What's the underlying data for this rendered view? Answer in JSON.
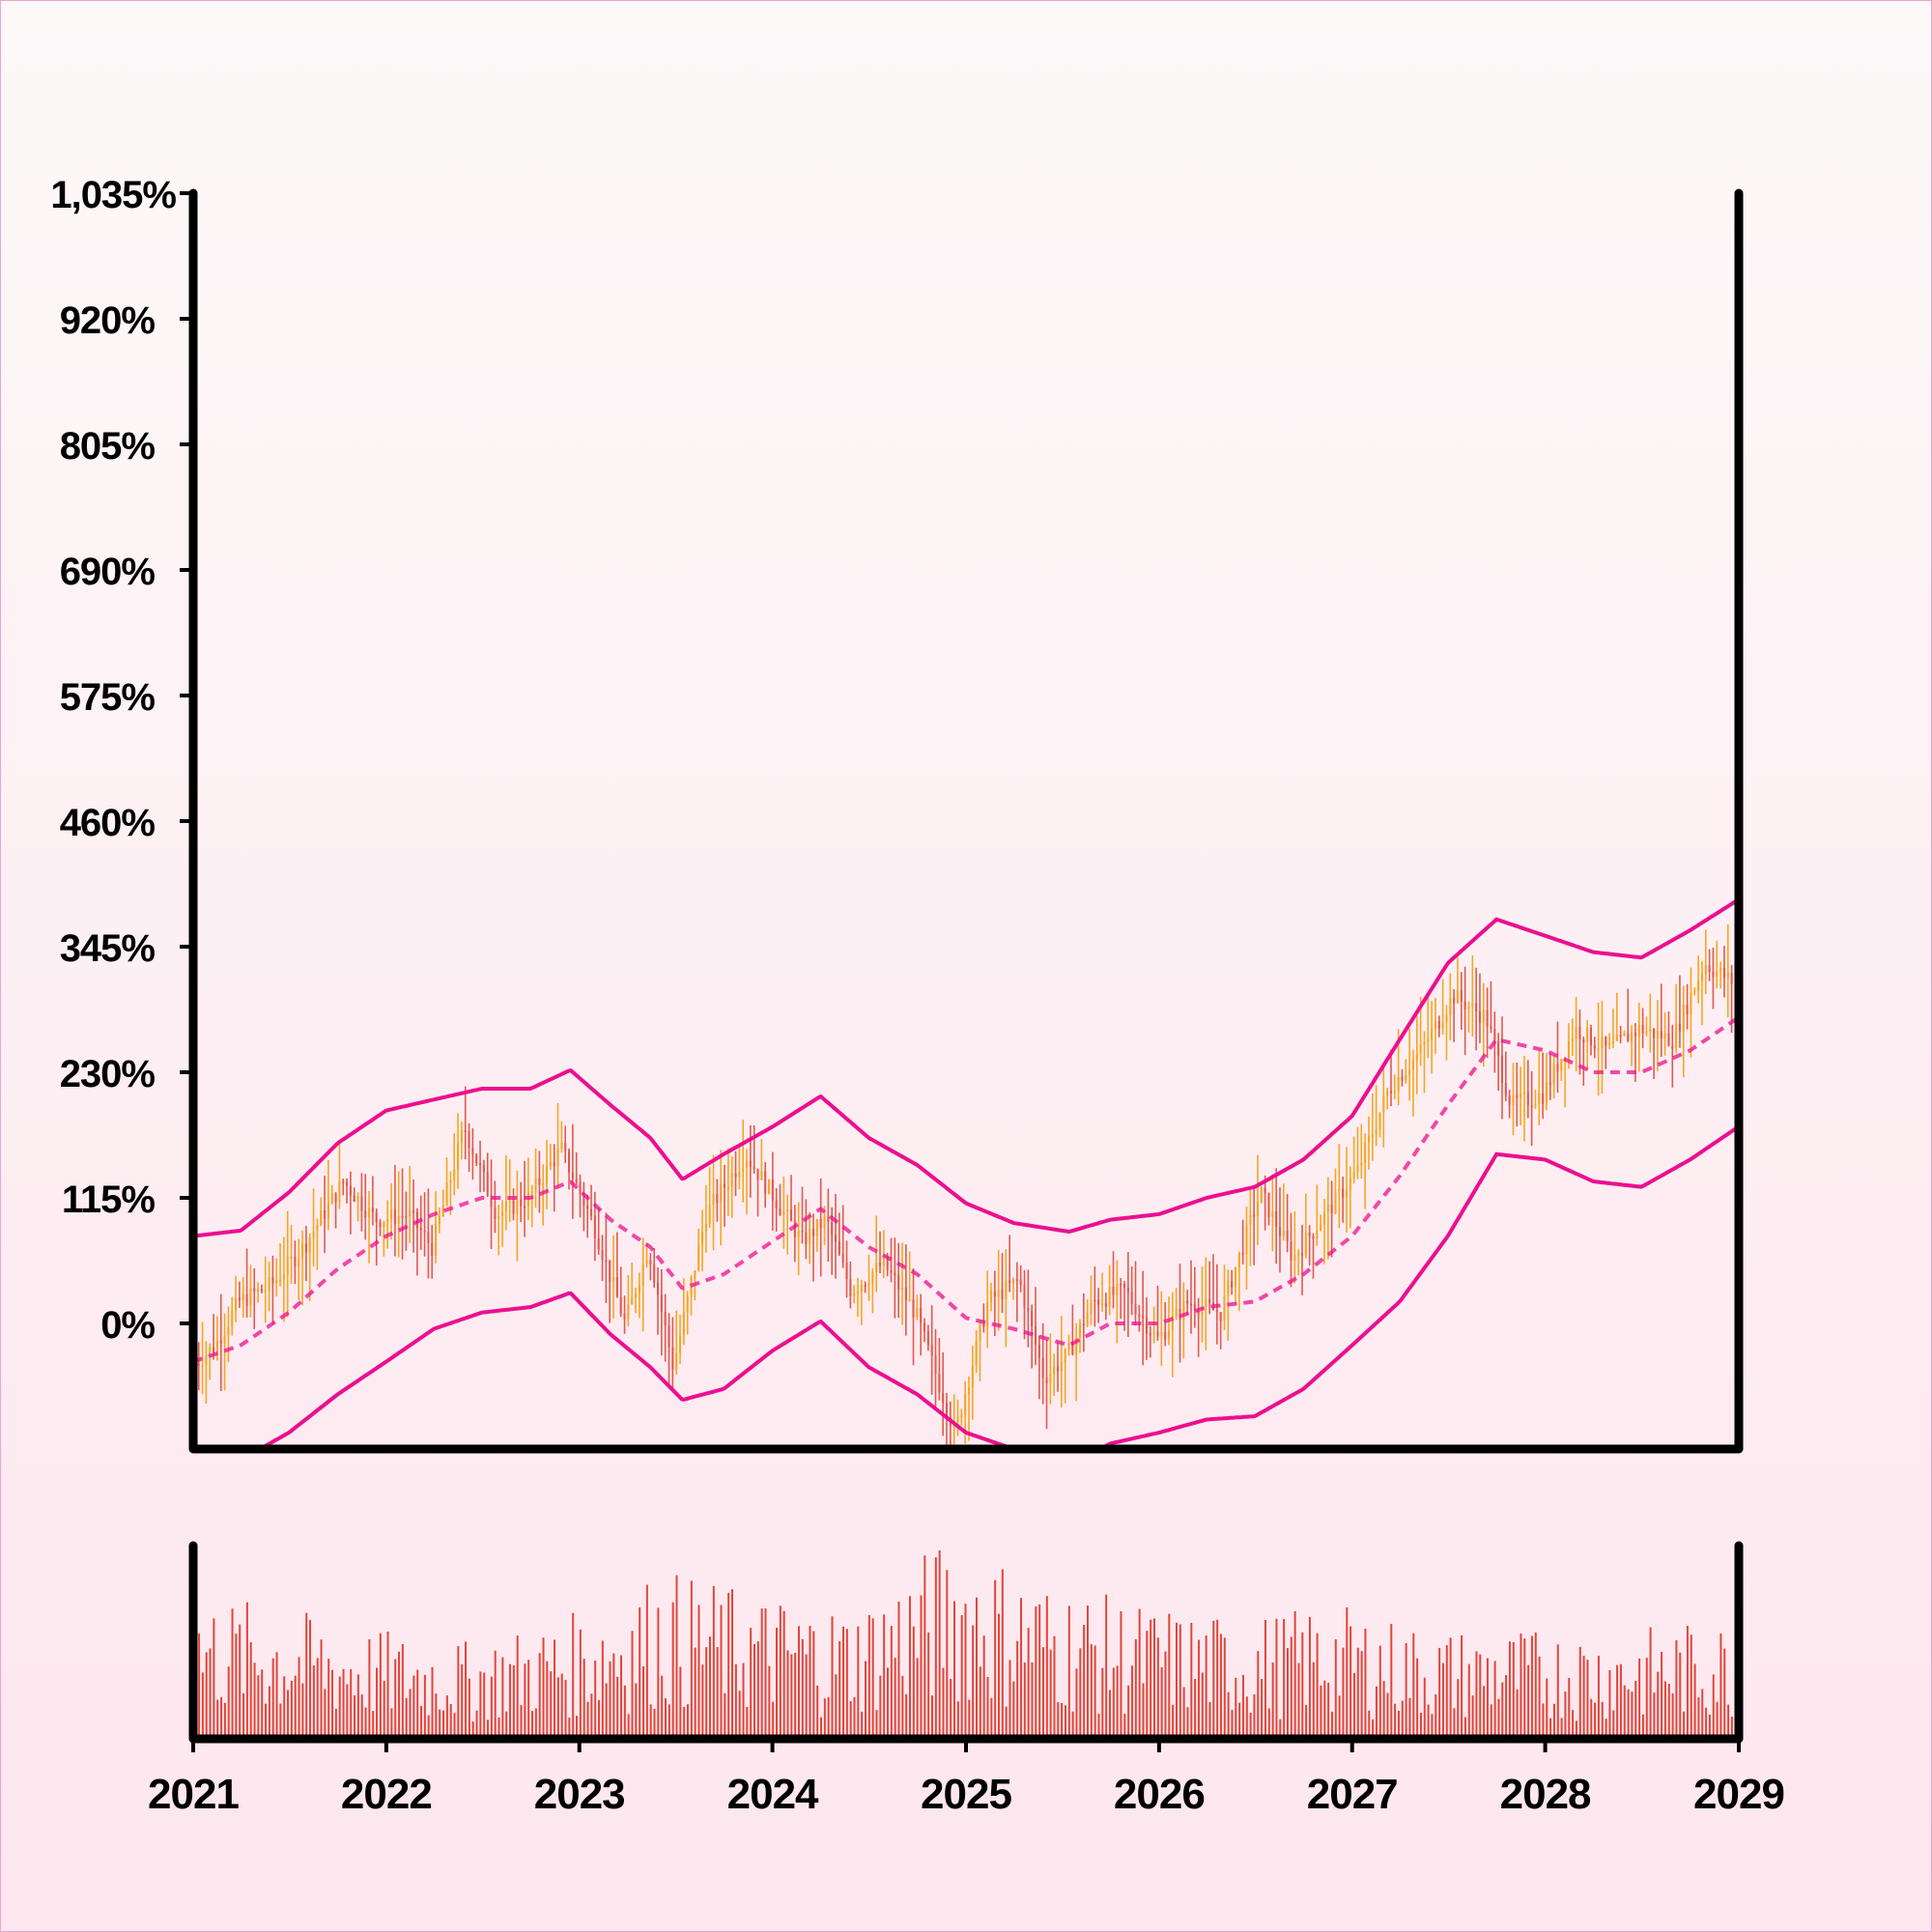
{
  "chart_data": [
    {
      "type": "candlestick",
      "title": "",
      "xlabel": "",
      "ylabel": "",
      "ylim": [
        -115,
        1035
      ],
      "yticks": [
        "0%",
        "115%",
        "230%",
        "345%",
        "460%",
        "575%",
        "690%",
        "805%",
        "920%",
        "1,035%"
      ],
      "ytick_values": [
        0,
        115,
        230,
        345,
        460,
        575,
        690,
        805,
        920,
        1035
      ],
      "x_start": "2021-01-01",
      "x_end": "2029-01-01",
      "candle_color_up": "#f5a623",
      "candle_color_down": "#e05a4f",
      "band_color": "#ec0f8f",
      "close_series": [
        {
          "date": "2021-01-01",
          "value": -40
        },
        {
          "date": "2021-02-15",
          "value": -20
        },
        {
          "date": "2021-04-01",
          "value": 20
        },
        {
          "date": "2021-06-01",
          "value": 35
        },
        {
          "date": "2021-08-01",
          "value": 70
        },
        {
          "date": "2021-10-15",
          "value": 130
        },
        {
          "date": "2021-12-15",
          "value": 95
        },
        {
          "date": "2022-02-15",
          "value": 100
        },
        {
          "date": "2022-04-01",
          "value": 70
        },
        {
          "date": "2022-06-01",
          "value": 180
        },
        {
          "date": "2022-08-01",
          "value": 100
        },
        {
          "date": "2022-10-01",
          "value": 115
        },
        {
          "date": "2022-12-01",
          "value": 160
        },
        {
          "date": "2023-02-01",
          "value": 90
        },
        {
          "date": "2023-04-01",
          "value": 0
        },
        {
          "date": "2023-05-15",
          "value": 70
        },
        {
          "date": "2023-07-01",
          "value": -40
        },
        {
          "date": "2023-09-01",
          "value": 100
        },
        {
          "date": "2023-11-15",
          "value": 155
        },
        {
          "date": "2024-01-15",
          "value": 110
        },
        {
          "date": "2024-03-01",
          "value": 75
        },
        {
          "date": "2024-04-15",
          "value": 95
        },
        {
          "date": "2024-06-01",
          "value": 30
        },
        {
          "date": "2024-08-01",
          "value": 55
        },
        {
          "date": "2024-10-01",
          "value": 10
        },
        {
          "date": "2024-12-15",
          "value": -100
        },
        {
          "date": "2025-02-15",
          "value": 20
        },
        {
          "date": "2025-04-15",
          "value": 40
        },
        {
          "date": "2025-06-01",
          "value": -50
        },
        {
          "date": "2025-07-15",
          "value": -30
        },
        {
          "date": "2025-09-01",
          "value": 20
        },
        {
          "date": "2025-11-01",
          "value": 30
        },
        {
          "date": "2026-01-01",
          "value": -15
        },
        {
          "date": "2026-03-01",
          "value": 20
        },
        {
          "date": "2026-05-01",
          "value": 10
        },
        {
          "date": "2026-07-15",
          "value": 120
        },
        {
          "date": "2026-09-15",
          "value": 60
        },
        {
          "date": "2026-11-15",
          "value": 100
        },
        {
          "date": "2027-01-15",
          "value": 140
        },
        {
          "date": "2027-03-15",
          "value": 215
        },
        {
          "date": "2027-05-15",
          "value": 250
        },
        {
          "date": "2027-07-15",
          "value": 300
        },
        {
          "date": "2027-09-15",
          "value": 280
        },
        {
          "date": "2027-11-01",
          "value": 200
        },
        {
          "date": "2028-01-01",
          "value": 210
        },
        {
          "date": "2028-03-01",
          "value": 270
        },
        {
          "date": "2028-05-01",
          "value": 250
        },
        {
          "date": "2028-07-01",
          "value": 270
        },
        {
          "date": "2028-09-01",
          "value": 260
        },
        {
          "date": "2028-11-01",
          "value": 330
        },
        {
          "date": "2028-12-31",
          "value": 310
        }
      ],
      "upper_band": [
        {
          "date": "2021-01-01",
          "value": 80
        },
        {
          "date": "2021-04-01",
          "value": 85
        },
        {
          "date": "2021-07-01",
          "value": 120
        },
        {
          "date": "2021-10-01",
          "value": 165
        },
        {
          "date": "2022-01-01",
          "value": 195
        },
        {
          "date": "2022-04-01",
          "value": 205
        },
        {
          "date": "2022-07-01",
          "value": 215
        },
        {
          "date": "2022-10-01",
          "value": 215
        },
        {
          "date": "2022-12-15",
          "value": 232
        },
        {
          "date": "2023-03-01",
          "value": 200
        },
        {
          "date": "2023-05-15",
          "value": 170
        },
        {
          "date": "2023-07-15",
          "value": 132
        },
        {
          "date": "2023-10-01",
          "value": 155
        },
        {
          "date": "2024-01-01",
          "value": 180
        },
        {
          "date": "2024-04-01",
          "value": 208
        },
        {
          "date": "2024-07-01",
          "value": 170
        },
        {
          "date": "2024-10-01",
          "value": 145
        },
        {
          "date": "2025-01-01",
          "value": 110
        },
        {
          "date": "2025-04-01",
          "value": 92
        },
        {
          "date": "2025-07-15",
          "value": 84
        },
        {
          "date": "2025-10-01",
          "value": 95
        },
        {
          "date": "2026-01-01",
          "value": 100
        },
        {
          "date": "2026-04-01",
          "value": 115
        },
        {
          "date": "2026-07-01",
          "value": 125
        },
        {
          "date": "2026-10-01",
          "value": 150
        },
        {
          "date": "2027-01-01",
          "value": 190
        },
        {
          "date": "2027-04-01",
          "value": 260
        },
        {
          "date": "2027-07-01",
          "value": 330
        },
        {
          "date": "2027-10-01",
          "value": 370
        },
        {
          "date": "2028-01-01",
          "value": 355
        },
        {
          "date": "2028-04-01",
          "value": 340
        },
        {
          "date": "2028-07-01",
          "value": 335
        },
        {
          "date": "2028-10-01",
          "value": 360
        },
        {
          "date": "2028-12-31",
          "value": 388
        }
      ],
      "middle_band": [
        {
          "date": "2021-01-01",
          "value": -35
        },
        {
          "date": "2021-04-01",
          "value": -20
        },
        {
          "date": "2021-07-01",
          "value": 10
        },
        {
          "date": "2021-10-01",
          "value": 50
        },
        {
          "date": "2022-01-01",
          "value": 80
        },
        {
          "date": "2022-04-01",
          "value": 100
        },
        {
          "date": "2022-07-01",
          "value": 115
        },
        {
          "date": "2022-10-01",
          "value": 115
        },
        {
          "date": "2022-12-15",
          "value": 130
        },
        {
          "date": "2023-03-01",
          "value": 95
        },
        {
          "date": "2023-05-15",
          "value": 70
        },
        {
          "date": "2023-07-15",
          "value": 32
        },
        {
          "date": "2023-10-01",
          "value": 45
        },
        {
          "date": "2024-01-01",
          "value": 75
        },
        {
          "date": "2024-04-01",
          "value": 105
        },
        {
          "date": "2024-07-01",
          "value": 70
        },
        {
          "date": "2024-10-01",
          "value": 45
        },
        {
          "date": "2025-01-01",
          "value": 5
        },
        {
          "date": "2025-04-01",
          "value": -5
        },
        {
          "date": "2025-07-15",
          "value": -20
        },
        {
          "date": "2025-10-01",
          "value": 0
        },
        {
          "date": "2026-01-01",
          "value": 0
        },
        {
          "date": "2026-04-01",
          "value": 15
        },
        {
          "date": "2026-07-01",
          "value": 20
        },
        {
          "date": "2026-10-01",
          "value": 45
        },
        {
          "date": "2027-01-01",
          "value": 80
        },
        {
          "date": "2027-04-01",
          "value": 135
        },
        {
          "date": "2027-07-01",
          "value": 200
        },
        {
          "date": "2027-10-01",
          "value": 260
        },
        {
          "date": "2028-01-01",
          "value": 250
        },
        {
          "date": "2028-04-01",
          "value": 230
        },
        {
          "date": "2028-07-01",
          "value": 230
        },
        {
          "date": "2028-10-01",
          "value": 250
        },
        {
          "date": "2028-12-31",
          "value": 280
        }
      ],
      "lower_band": [
        {
          "date": "2021-01-01",
          "value": -150
        },
        {
          "date": "2021-04-01",
          "value": -125
        },
        {
          "date": "2021-07-01",
          "value": -100
        },
        {
          "date": "2021-10-01",
          "value": -65
        },
        {
          "date": "2022-01-01",
          "value": -35
        },
        {
          "date": "2022-04-01",
          "value": -5
        },
        {
          "date": "2022-07-01",
          "value": 10
        },
        {
          "date": "2022-10-01",
          "value": 15
        },
        {
          "date": "2022-12-15",
          "value": 28
        },
        {
          "date": "2023-03-01",
          "value": -10
        },
        {
          "date": "2023-05-15",
          "value": -40
        },
        {
          "date": "2023-07-15",
          "value": -70
        },
        {
          "date": "2023-10-01",
          "value": -60
        },
        {
          "date": "2024-01-01",
          "value": -25
        },
        {
          "date": "2024-04-01",
          "value": 2
        },
        {
          "date": "2024-07-01",
          "value": -40
        },
        {
          "date": "2024-10-01",
          "value": -65
        },
        {
          "date": "2025-01-01",
          "value": -100
        },
        {
          "date": "2025-04-01",
          "value": -115
        },
        {
          "date": "2025-07-15",
          "value": -130
        },
        {
          "date": "2025-10-01",
          "value": -110
        },
        {
          "date": "2026-01-01",
          "value": -100
        },
        {
          "date": "2026-04-01",
          "value": -88
        },
        {
          "date": "2026-07-01",
          "value": -85
        },
        {
          "date": "2026-10-01",
          "value": -60
        },
        {
          "date": "2027-01-01",
          "value": -20
        },
        {
          "date": "2027-04-01",
          "value": 20
        },
        {
          "date": "2027-07-01",
          "value": 80
        },
        {
          "date": "2027-10-01",
          "value": 155
        },
        {
          "date": "2028-01-01",
          "value": 150
        },
        {
          "date": "2028-04-01",
          "value": 130
        },
        {
          "date": "2028-07-01",
          "value": 125
        },
        {
          "date": "2028-10-01",
          "value": 150
        },
        {
          "date": "2028-12-31",
          "value": 180
        }
      ]
    },
    {
      "type": "bar",
      "title": "",
      "xlabel": "",
      "ylabel": "",
      "xticks": [
        "2021",
        "2022",
        "2023",
        "2024",
        "2025",
        "2026",
        "2027",
        "2028",
        "2029"
      ],
      "bar_color": "#e0463a",
      "volume_envelope": [
        {
          "date": "2021-01-01",
          "value": 0.6
        },
        {
          "date": "2021-06-01",
          "value": 0.55
        },
        {
          "date": "2021-12-01",
          "value": 0.45
        },
        {
          "date": "2022-06-01",
          "value": 0.4
        },
        {
          "date": "2022-12-01",
          "value": 0.5
        },
        {
          "date": "2023-06-01",
          "value": 0.7
        },
        {
          "date": "2023-12-01",
          "value": 0.6
        },
        {
          "date": "2024-06-01",
          "value": 0.55
        },
        {
          "date": "2024-12-01",
          "value": 0.85
        },
        {
          "date": "2025-06-01",
          "value": 0.65
        },
        {
          "date": "2025-12-01",
          "value": 0.55
        },
        {
          "date": "2026-06-01",
          "value": 0.5
        },
        {
          "date": "2026-12-01",
          "value": 0.55
        },
        {
          "date": "2027-06-01",
          "value": 0.45
        },
        {
          "date": "2027-12-01",
          "value": 0.45
        },
        {
          "date": "2028-06-01",
          "value": 0.45
        },
        {
          "date": "2028-12-31",
          "value": 0.5
        }
      ]
    }
  ]
}
